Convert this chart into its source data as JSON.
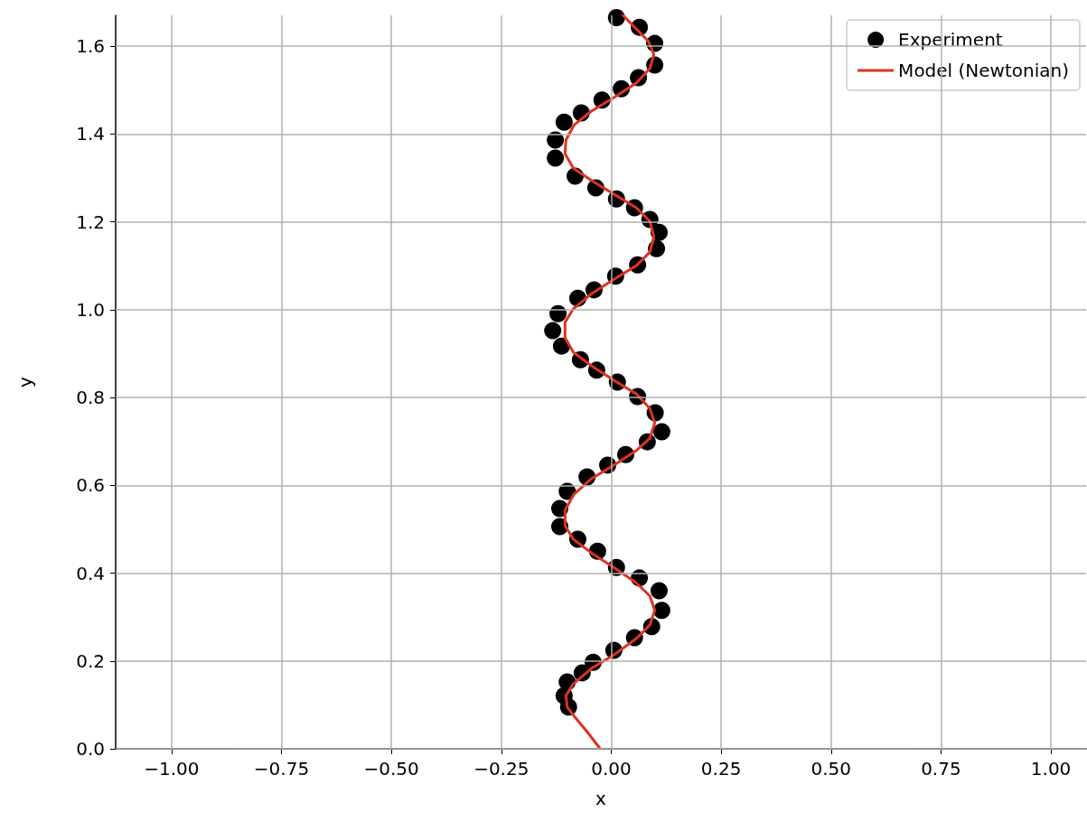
{
  "chart_data": {
    "type": "scatter",
    "xlabel": "x",
    "ylabel": "y",
    "xlim": [
      -1.127,
      1.08
    ],
    "ylim": [
      0,
      1.67
    ],
    "xticks": [
      {
        "value": -1,
        "label": "−1.00"
      },
      {
        "value": -0.75,
        "label": "−0.75"
      },
      {
        "value": -0.5,
        "label": "−0.50"
      },
      {
        "value": -0.25,
        "label": "−0.25"
      },
      {
        "value": 0,
        "label": "0.00"
      },
      {
        "value": 0.25,
        "label": "0.25"
      },
      {
        "value": 0.5,
        "label": "0.50"
      },
      {
        "value": 0.75,
        "label": "0.75"
      },
      {
        "value": 1,
        "label": "1.00"
      }
    ],
    "yticks": [
      {
        "value": 0,
        "label": "0.0"
      },
      {
        "value": 0.2,
        "label": "0.2"
      },
      {
        "value": 0.4,
        "label": "0.4"
      },
      {
        "value": 0.6,
        "label": "0.6"
      },
      {
        "value": 0.8,
        "label": "0.8"
      },
      {
        "value": 1,
        "label": "1.0"
      },
      {
        "value": 1.2,
        "label": "1.2"
      },
      {
        "value": 1.4,
        "label": "1.4"
      },
      {
        "value": 1.6,
        "label": "1.6"
      }
    ],
    "grid": true,
    "legend": "top right",
    "series": [
      {
        "name": "Experiment",
        "color": "#000000",
        "marker": "circle",
        "x": [
          -0.097,
          -0.107,
          -0.1,
          -0.066,
          -0.041,
          0.006,
          0.053,
          0.092,
          0.115,
          0.109,
          0.064,
          0.012,
          -0.031,
          -0.076,
          -0.117,
          -0.117,
          -0.1,
          -0.055,
          -0.008,
          0.033,
          0.082,
          0.115,
          0.1,
          0.06,
          0.014,
          -0.033,
          -0.07,
          -0.113,
          -0.133,
          -0.121,
          -0.076,
          -0.039,
          0.01,
          0.06,
          0.103,
          0.109,
          0.088,
          0.053,
          0.012,
          -0.035,
          -0.082,
          -0.127,
          -0.127,
          -0.107,
          -0.068,
          -0.021,
          0.023,
          0.062,
          0.099,
          0.099,
          0.064,
          0.012
        ],
        "values": [
          0.095,
          0.121,
          0.152,
          0.173,
          0.197,
          0.224,
          0.253,
          0.278,
          0.315,
          0.36,
          0.389,
          0.413,
          0.45,
          0.477,
          0.506,
          0.547,
          0.586,
          0.619,
          0.646,
          0.67,
          0.699,
          0.722,
          0.765,
          0.802,
          0.835,
          0.862,
          0.886,
          0.917,
          0.952,
          0.991,
          1.026,
          1.045,
          1.076,
          1.102,
          1.139,
          1.176,
          1.205,
          1.232,
          1.252,
          1.277,
          1.304,
          1.345,
          1.386,
          1.427,
          1.448,
          1.477,
          1.503,
          1.528,
          1.557,
          1.606,
          1.643,
          1.665
        ]
      },
      {
        "name": "Model (Newtonian)",
        "type": "line",
        "color": "#dd3322",
        "marker": "none",
        "line_style": "solid",
        "x": [
          -0.025,
          -0.055,
          -0.084,
          -0.1,
          -0.103,
          -0.086,
          -0.045,
          0.006,
          0.057,
          0.088,
          0.099,
          0.088,
          0.057,
          0.006,
          -0.045,
          -0.086,
          -0.105,
          -0.105,
          -0.086,
          -0.045,
          0.006,
          0.057,
          0.088,
          0.099,
          0.088,
          0.057,
          0.006,
          -0.045,
          -0.086,
          -0.105,
          -0.105,
          -0.086,
          -0.045,
          0.006,
          0.057,
          0.088,
          0.097,
          0.088,
          0.057,
          0.006,
          -0.045,
          -0.086,
          -0.105,
          -0.103,
          -0.084,
          -0.045,
          0.006,
          0.057,
          0.088,
          0.097,
          0.084,
          0.053,
          0.027
        ],
        "values": [
          0,
          0.039,
          0.074,
          0.095,
          0.121,
          0.148,
          0.183,
          0.214,
          0.251,
          0.282,
          0.315,
          0.348,
          0.378,
          0.413,
          0.446,
          0.477,
          0.508,
          0.543,
          0.578,
          0.615,
          0.646,
          0.679,
          0.707,
          0.742,
          0.775,
          0.808,
          0.839,
          0.872,
          0.903,
          0.936,
          0.971,
          1.002,
          1.036,
          1.069,
          1.1,
          1.131,
          1.166,
          1.201,
          1.232,
          1.263,
          1.294,
          1.322,
          1.355,
          1.386,
          1.421,
          1.452,
          1.483,
          1.516,
          1.549,
          1.581,
          1.612,
          1.643,
          1.67
        ]
      }
    ]
  }
}
